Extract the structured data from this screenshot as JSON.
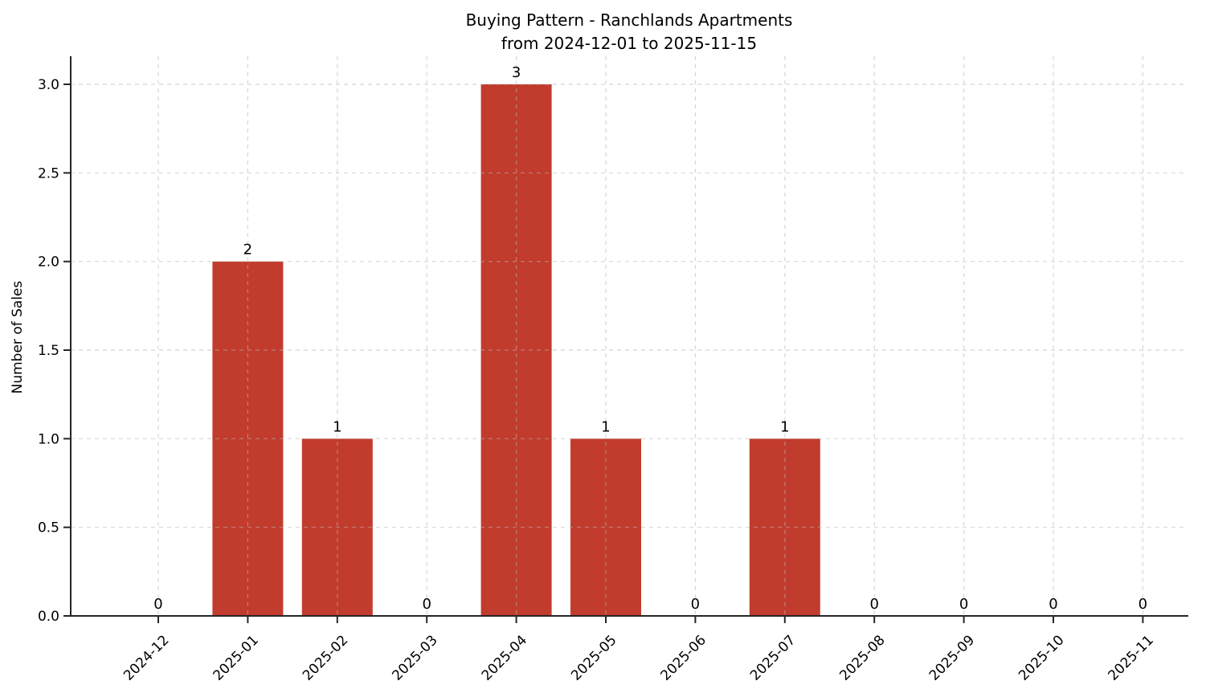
{
  "figure": {
    "background": "#ffffff"
  },
  "chart_data": {
    "type": "bar",
    "title": "Buying Pattern - Ranchlands Apartments",
    "subtitle": "from 2024-12-01 to 2025-11-15",
    "xlabel": "",
    "ylabel": "Number of Sales",
    "categories": [
      "2024-12",
      "2025-01",
      "2025-02",
      "2025-03",
      "2025-04",
      "2025-05",
      "2025-06",
      "2025-07",
      "2025-08",
      "2025-09",
      "2025-10",
      "2025-11"
    ],
    "values": [
      0,
      2,
      1,
      0,
      3,
      1,
      0,
      1,
      0,
      0,
      0,
      0
    ],
    "bar_labels": [
      "0",
      "2",
      "1",
      "0",
      "3",
      "1",
      "0",
      "1",
      "0",
      "0",
      "0",
      "0"
    ],
    "ylim": [
      0,
      3.15
    ],
    "yticks": [
      0,
      0.5,
      1,
      1.5,
      2,
      2.5,
      3
    ],
    "ytick_labels": [
      "0.0",
      "0.5",
      "1.0",
      "1.5",
      "2.0",
      "2.5",
      "3.0"
    ],
    "x_tick_rotation": 45,
    "grid": true,
    "grid_style": "dashed",
    "legend_position": "none",
    "bar_color": "#c23c2d",
    "grid_color": "#b8b8b8",
    "axis_color": "#262626",
    "text_color": "#000000"
  }
}
